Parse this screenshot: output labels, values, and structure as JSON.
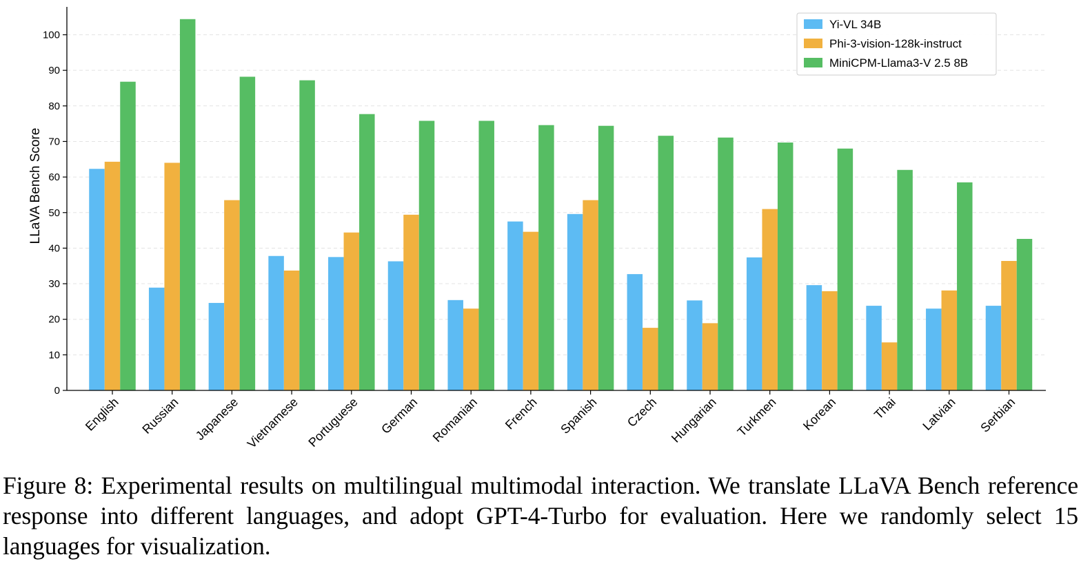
{
  "chart_data": {
    "type": "bar",
    "title": "",
    "xlabel": "",
    "ylabel": "LLaVA Bench Score",
    "ylim": [
      0,
      105
    ],
    "yticks": [
      0,
      10,
      20,
      30,
      40,
      50,
      60,
      70,
      80,
      90,
      100
    ],
    "grid": true,
    "legend_position": "top-right",
    "categories": [
      "English",
      "Russian",
      "Japanese",
      "Vietnamese",
      "Portuguese",
      "German",
      "Romanian",
      "French",
      "Spanish",
      "Czech",
      "Hungarian",
      "Turkmen",
      "Korean",
      "Thai",
      "Latvian",
      "Serbian"
    ],
    "series": [
      {
        "name": "Yi-VL 34B",
        "color": "#5dbbf3",
        "values": [
          62.3,
          28.9,
          24.6,
          37.8,
          37.5,
          36.3,
          25.4,
          47.5,
          49.6,
          32.7,
          25.3,
          37.4,
          29.6,
          23.8,
          23.0,
          23.8
        ]
      },
      {
        "name": "Phi-3-vision-128k-instruct",
        "color": "#f1b13f",
        "values": [
          64.3,
          64.0,
          53.5,
          33.7,
          44.4,
          49.4,
          23.0,
          44.6,
          53.5,
          17.6,
          18.9,
          51.0,
          27.9,
          13.5,
          28.1,
          36.4
        ]
      },
      {
        "name": "MiniCPM-Llama3-V 2.5 8B",
        "color": "#56bd63",
        "values": [
          86.8,
          104.4,
          88.2,
          87.2,
          77.7,
          75.8,
          75.8,
          74.6,
          74.4,
          71.6,
          71.1,
          69.7,
          68.0,
          62.0,
          58.5,
          42.6
        ]
      }
    ]
  },
  "caption": "Figure 8: Experimental results on multilingual multimodal interaction. We translate LLaVA Bench reference response into different languages, and adopt GPT-4-Turbo for evaluation. Here we randomly select 15 languages for visualization."
}
